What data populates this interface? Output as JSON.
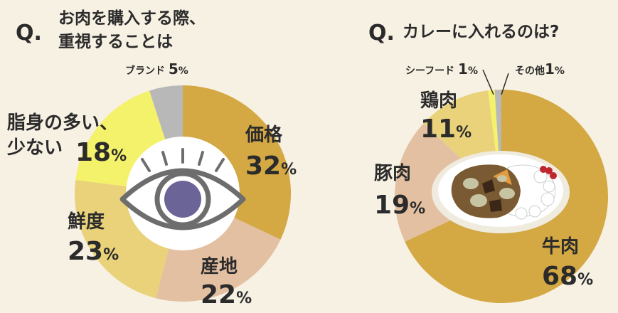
{
  "colors": {
    "background": "#f7f1e3",
    "text": "#2b2b2b",
    "gold": "#d4a843",
    "beige": "#e3c0a2",
    "light_yellow": "#e9d27a",
    "bright_yellow": "#f4f16a",
    "gray": "#b8b8b8",
    "eye_iris": "#6b6496"
  },
  "chart_data": [
    {
      "type": "pie",
      "title_mark": "Q.",
      "title_lines": [
        "お肉を購入する際、",
        "重視することは"
      ],
      "slices": [
        {
          "id": "price",
          "label": "価格",
          "value": 32,
          "value_text": "32",
          "unit": "%",
          "color": "#d4a843"
        },
        {
          "id": "origin",
          "label": "産地",
          "value": 22,
          "value_text": "22",
          "unit": "%",
          "color": "#e3c0a2"
        },
        {
          "id": "freshness",
          "label": "鮮度",
          "value": 23,
          "value_text": "23",
          "unit": "%",
          "color": "#e9d27a"
        },
        {
          "id": "fat",
          "label_lines": [
            "脂身の多い、",
            "少ない"
          ],
          "value": 18,
          "value_text": "18",
          "unit": "%",
          "color": "#f4f16a"
        },
        {
          "id": "brand",
          "label": "ブランド",
          "value": 5,
          "value_text": "5",
          "unit": "%",
          "color": "#b8b8b8"
        }
      ]
    },
    {
      "type": "pie",
      "title_mark": "Q.",
      "title_lines": [
        "カレーに入れるのは?"
      ],
      "slices": [
        {
          "id": "beef",
          "label": "牛肉",
          "value": 68,
          "value_text": "68",
          "unit": "%",
          "color": "#d4a843"
        },
        {
          "id": "pork",
          "label": "豚肉",
          "value": 19,
          "value_text": "19",
          "unit": "%",
          "color": "#e3c0a2"
        },
        {
          "id": "chicken",
          "label": "鶏肉",
          "value": 11,
          "value_text": "11",
          "unit": "%",
          "color": "#e9d27a"
        },
        {
          "id": "seafood",
          "label": "シーフード",
          "value": 1,
          "value_text": "1",
          "unit": "%",
          "color": "#f4f16a"
        },
        {
          "id": "other",
          "label": "その他",
          "value": 1,
          "value_text": "1",
          "unit": "%",
          "color": "#b8b8b8"
        }
      ]
    }
  ]
}
